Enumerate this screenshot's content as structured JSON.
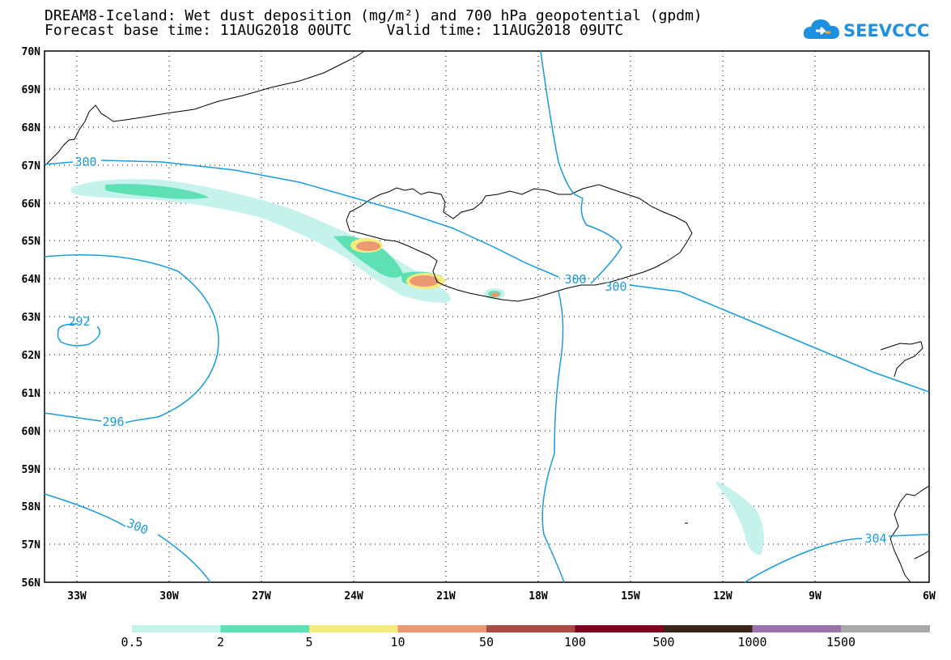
{
  "title": {
    "line1": "DREAM8-Iceland: Wet dust deposition (mg/m²) and 700 hPa geopotential (gpdm)",
    "line2": "Forecast base time: 11AUG2018 00UTC    Valid time: 11AUG2018 09UTC"
  },
  "logo": {
    "text": "SEEVCCC",
    "icon": "cloud-icon",
    "color": "#1e90e0"
  },
  "map": {
    "lat_labels": [
      "70N",
      "69N",
      "68N",
      "67N",
      "66N",
      "65N",
      "64N",
      "63N",
      "62N",
      "61N",
      "60N",
      "59N",
      "58N",
      "57N",
      "56N"
    ],
    "lon_labels": [
      "33W",
      "30W",
      "27W",
      "24W",
      "21W",
      "18W",
      "15W",
      "12W",
      "9W",
      "6W"
    ],
    "grid": "dotted",
    "contour_color": "#1a9be0",
    "contour_labels": [
      "300",
      "300",
      "300",
      "292",
      "296",
      "300",
      "304"
    ]
  },
  "legend": {
    "colors": [
      "#c6f2ec",
      "#5ee0b4",
      "#f4ec7e",
      "#ec9872",
      "#a84c44",
      "#800020",
      "#3a2418",
      "#9a72ac",
      "#a8a8a8"
    ],
    "labels": [
      "0.5",
      "2",
      "5",
      "10",
      "50",
      "100",
      "500",
      "1000",
      "1500"
    ]
  }
}
